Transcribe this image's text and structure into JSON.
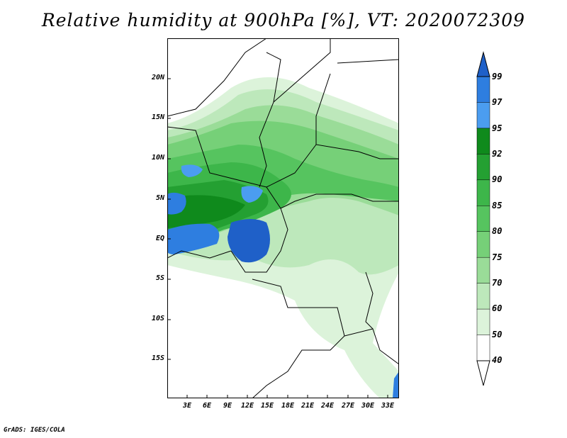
{
  "title": "Relative humidity at 900hPa [%], VT: 2020072309",
  "credit": "GrADS: IGES/COLA",
  "map": {
    "lat_labels": [
      "20N",
      "15N",
      "10N",
      "5N",
      "EQ",
      "5S",
      "10S",
      "15S"
    ],
    "lon_labels": [
      "3E",
      "6E",
      "9E",
      "12E",
      "15E",
      "18E",
      "21E",
      "24E",
      "27E",
      "30E",
      "33E"
    ]
  },
  "colorbar": {
    "levels": [
      "99",
      "97",
      "95",
      "92",
      "90",
      "85",
      "80",
      "75",
      "70",
      "60",
      "50",
      "40"
    ],
    "colors": [
      "#1f60c8",
      "#2e7ee0",
      "#4b9df0",
      "#0f8a1c",
      "#24a032",
      "#3db64a",
      "#56c45f",
      "#76d078",
      "#9adc98",
      "#bde8bb",
      "#dcf3da",
      "#ffffff"
    ]
  }
}
